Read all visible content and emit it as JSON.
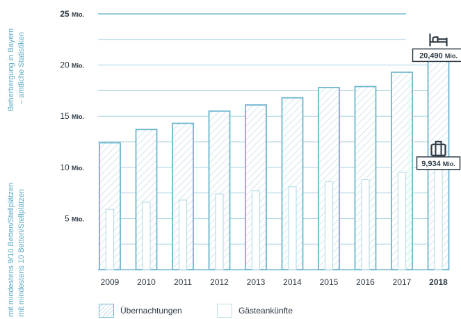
{
  "chart_data": {
    "type": "bar",
    "categories": [
      "2009",
      "2010",
      "2011",
      "2012",
      "2013",
      "2014",
      "2015",
      "2016",
      "2017",
      "2018"
    ],
    "series": [
      {
        "name": "Übernachtungen",
        "values": [
          12.4,
          13.7,
          14.3,
          15.5,
          16.1,
          16.8,
          17.8,
          17.9,
          19.3,
          20.49
        ]
      },
      {
        "name": "Gästeankünfte",
        "values": [
          5.9,
          6.6,
          6.8,
          7.4,
          7.7,
          8.1,
          8.6,
          8.8,
          9.5,
          9.934
        ]
      }
    ],
    "ylim": [
      0,
      25
    ],
    "yticks": [
      {
        "value": 5,
        "label": "5 Mio."
      },
      {
        "value": 10,
        "label": "10 Mio."
      },
      {
        "value": 15,
        "label": "15 Mio."
      },
      {
        "value": 20,
        "label": "20 Mio."
      },
      {
        "value": 25,
        "label": "25 Mio."
      }
    ],
    "annotations": [
      {
        "label": "20,490 Mio.",
        "series": "Übernachtungen",
        "category": "2018",
        "icon": "bed-icon"
      },
      {
        "label": "9,934 Mio.",
        "series": "Gästeankünfte",
        "category": "2018",
        "icon": "suitcase-icon"
      }
    ],
    "side_title": [
      "Beherbergung in Bayern",
      "– amtliche Statistiken"
    ],
    "side_note": [
      "mit mindestens 9/10 Betten/Stellplätzen",
      "mit mindestens 10 Betten/Stellplätzen"
    ],
    "highlight_category": "2018",
    "grid": true,
    "legend_position": "bottom-left",
    "colors": {
      "accent": "#5aaac4",
      "bar_border": "#6fb6cf",
      "hatch": "#c7e0e9",
      "text": "#2e3a45"
    }
  },
  "legend": [
    {
      "label": "Übernachtungen",
      "style": "hatched"
    },
    {
      "label": "Gästeankünfte",
      "style": "plain"
    }
  ]
}
